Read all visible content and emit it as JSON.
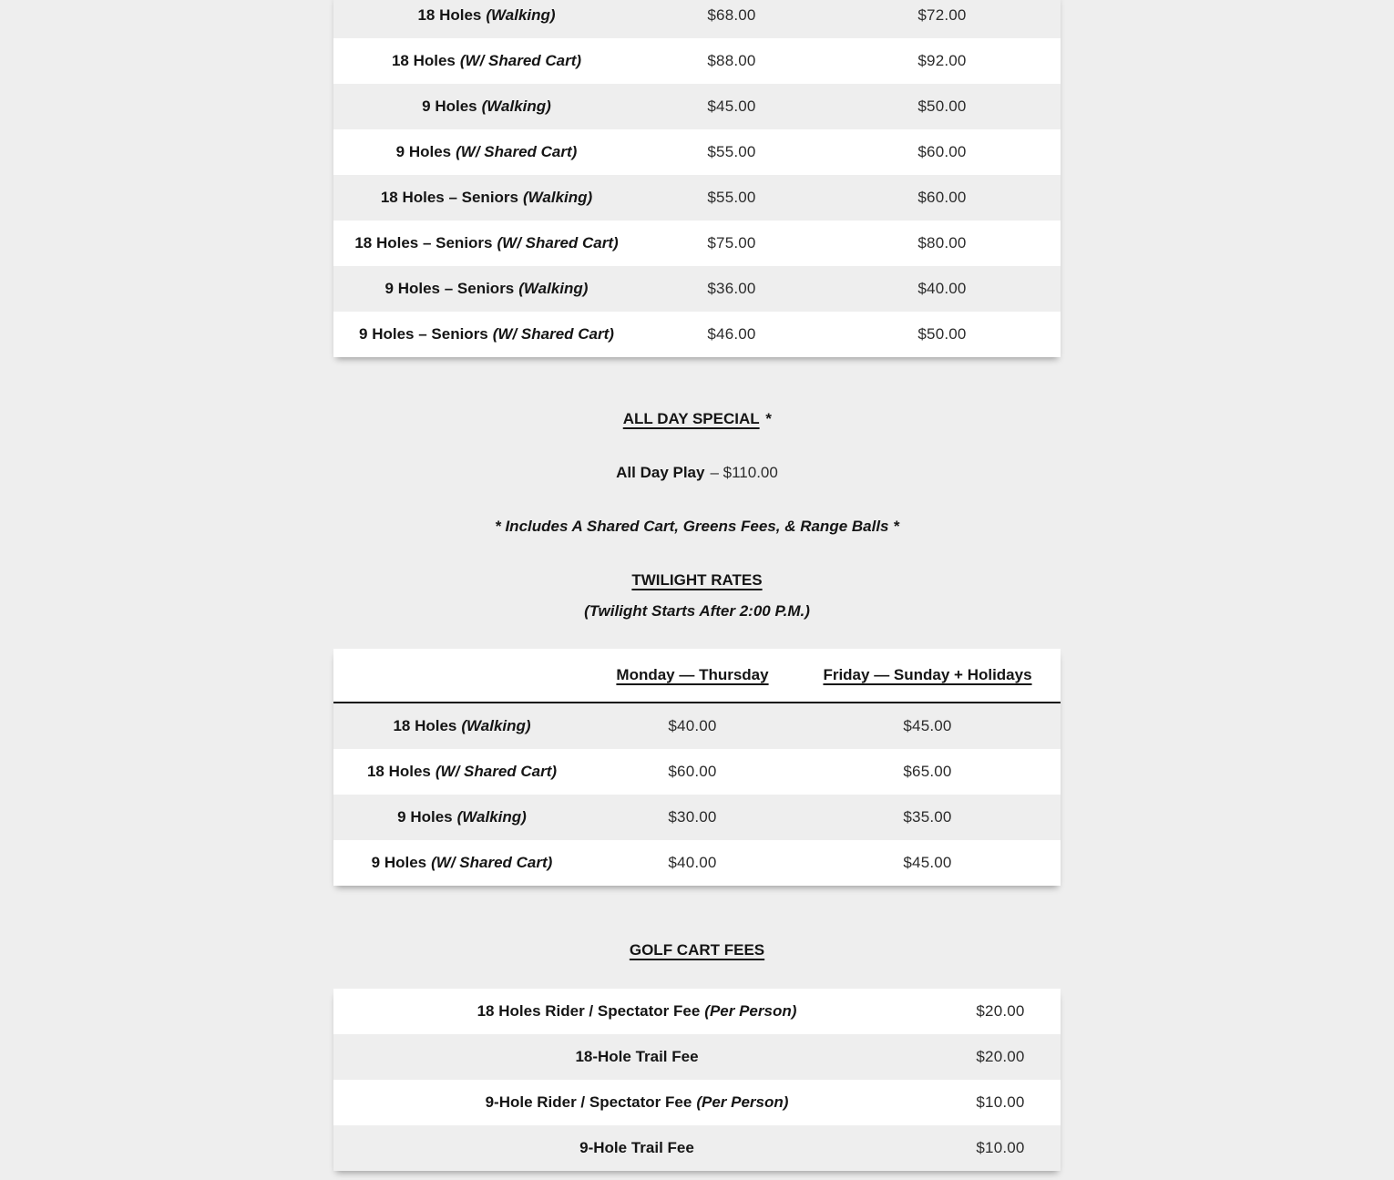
{
  "theme": {
    "page_bg": "#eeeeee",
    "row_white": "#ffffff",
    "row_gray": "#eeeeee",
    "text_color": "#151515",
    "price_color": "#2b2b2b",
    "header_rule_color": "#111111"
  },
  "regular_rates": {
    "rows": [
      {
        "label": "18 Holes",
        "qualifier": "(Walking)",
        "mon_thu": "$68.00",
        "fri_sun": "$72.00"
      },
      {
        "label": "18 Holes",
        "qualifier": "(W/ Shared Cart)",
        "mon_thu": "$88.00",
        "fri_sun": "$92.00"
      },
      {
        "label": "9 Holes",
        "qualifier": "(Walking)",
        "mon_thu": "$45.00",
        "fri_sun": "$50.00"
      },
      {
        "label": "9 Holes",
        "qualifier": "(W/ Shared Cart)",
        "mon_thu": "$55.00",
        "fri_sun": "$60.00"
      },
      {
        "label": "18 Holes – Seniors",
        "qualifier": "(Walking)",
        "mon_thu": "$55.00",
        "fri_sun": "$60.00"
      },
      {
        "label": "18 Holes – Seniors",
        "qualifier": "(W/ Shared Cart)",
        "mon_thu": "$75.00",
        "fri_sun": "$80.00"
      },
      {
        "label": "9 Holes – Seniors",
        "qualifier": "(Walking)",
        "mon_thu": "$36.00",
        "fri_sun": "$40.00"
      },
      {
        "label": "9 Holes – Seniors",
        "qualifier": "(W/ Shared Cart)",
        "mon_thu": "$46.00",
        "fri_sun": "$50.00"
      }
    ]
  },
  "all_day_special": {
    "heading": "ALL DAY SPECIAL",
    "heading_mark": "*",
    "item_label": "All Day Play",
    "item_value": "– $110.00",
    "note": "* Includes A Shared Cart, Greens Fees, & Range Balls *"
  },
  "twilight": {
    "heading": "TWILIGHT RATES",
    "subheading": "(Twilight Starts After 2:00 P.M.)",
    "col_mon_thu": "Monday — Thursday",
    "col_fri_sun": "Friday — Sunday + Holidays",
    "rows": [
      {
        "label": "18 Holes",
        "qualifier": "(Walking)",
        "mon_thu": "$40.00",
        "fri_sun": "$45.00"
      },
      {
        "label": "18 Holes",
        "qualifier": "(W/ Shared Cart)",
        "mon_thu": "$60.00",
        "fri_sun": "$65.00"
      },
      {
        "label": "9 Holes",
        "qualifier": "(Walking)",
        "mon_thu": "$30.00",
        "fri_sun": "$35.00"
      },
      {
        "label": "9 Holes",
        "qualifier": "(W/ Shared Cart)",
        "mon_thu": "$40.00",
        "fri_sun": "$45.00"
      }
    ]
  },
  "cart_fees": {
    "heading": "GOLF CART FEES",
    "rows": [
      {
        "label": "18 Holes Rider / Spectator Fee",
        "qualifier": "(Per Person)",
        "price": "$20.00"
      },
      {
        "label": "18-Hole Trail Fee",
        "qualifier": "",
        "price": "$20.00"
      },
      {
        "label": "9-Hole Rider / Spectator Fee",
        "qualifier": "(Per Person)",
        "price": "$10.00"
      },
      {
        "label": "9-Hole Trail Fee",
        "qualifier": "",
        "price": "$10.00"
      }
    ]
  }
}
